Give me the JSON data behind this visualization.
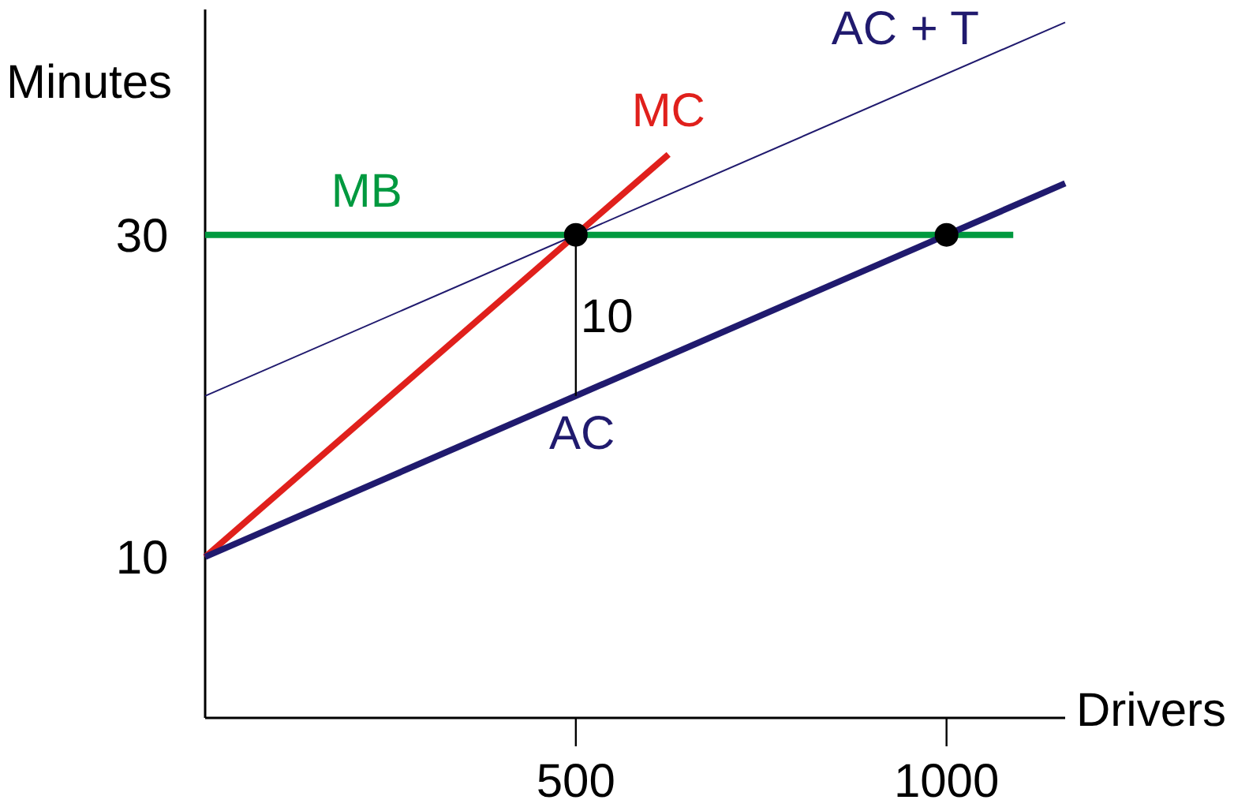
{
  "chart_data": {
    "type": "line",
    "xlabel": "Drivers",
    "ylabel": "Minutes",
    "xlim": [
      0,
      1160
    ],
    "ylim": [
      0,
      44
    ],
    "xticks": [
      500,
      1000
    ],
    "yticks": [
      10,
      30
    ],
    "grid": false,
    "line_style": "solid",
    "series": [
      {
        "name": "MC",
        "color": "#e0201c",
        "x": [
          0,
          625
        ],
        "values": [
          10,
          35
        ]
      },
      {
        "name": "MB",
        "color": "#00993f",
        "x": [
          0,
          1090
        ],
        "values": [
          30,
          30
        ]
      },
      {
        "name": "AC",
        "color": "#201a6e",
        "x": [
          0,
          1160
        ],
        "values": [
          10,
          33.2
        ]
      },
      {
        "name": "AC + T",
        "color": "#201a6e",
        "x": [
          0,
          1160
        ],
        "values": [
          20,
          43.2
        ]
      },
      {
        "color": "#000000",
        "x": [
          500,
          500
        ],
        "values": [
          20,
          30
        ]
      },
      {
        "type": "scatter",
        "color": "#000000",
        "x": [
          500,
          1000
        ],
        "values": [
          30,
          30
        ]
      }
    ],
    "annotations": [
      {
        "text": "10",
        "x": 500,
        "y": 25
      }
    ]
  }
}
